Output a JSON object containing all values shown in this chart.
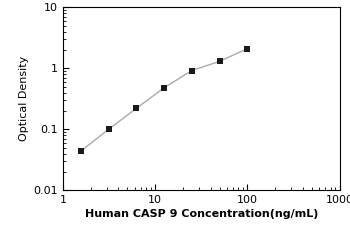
{
  "x": [
    1.563,
    3.125,
    6.25,
    12.5,
    25,
    50,
    100
  ],
  "y": [
    0.044,
    0.1,
    0.22,
    0.48,
    0.92,
    1.3,
    2.1
  ],
  "xlabel": "Human CASP 9 Concentration(ng/mL)",
  "ylabel": "Optical Density",
  "xlim": [
    1,
    1000
  ],
  "ylim": [
    0.01,
    10
  ],
  "xticks": [
    1,
    10,
    100,
    1000
  ],
  "yticks": [
    0.01,
    0.1,
    1,
    10
  ],
  "marker": "s",
  "marker_color": "#1a1a1a",
  "line_color": "#aaaaaa",
  "marker_size": 5,
  "line_width": 1.0,
  "bg_color": "#ffffff",
  "xlabel_fontsize": 8,
  "ylabel_fontsize": 8,
  "tick_fontsize": 8
}
